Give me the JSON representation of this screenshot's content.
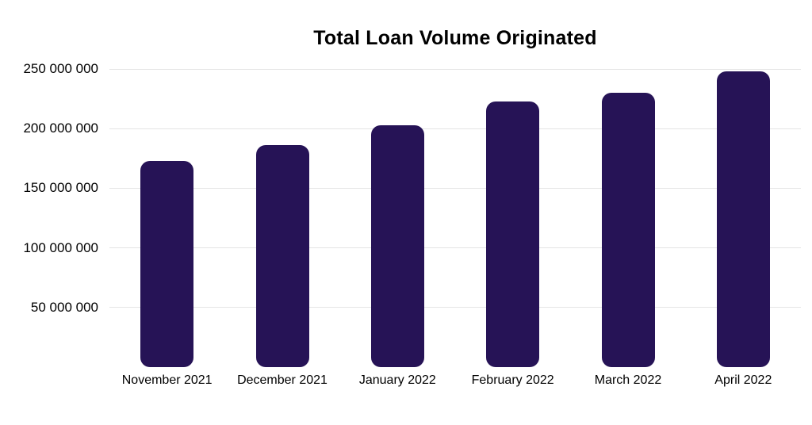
{
  "chart_data": {
    "type": "bar",
    "title": "Total Loan Volume Originated",
    "categories": [
      "November 2021",
      "December 2021",
      "January 2022",
      "February 2022",
      "March 2022",
      "April 2022"
    ],
    "values": [
      173000000,
      186000000,
      203000000,
      223000000,
      230000000,
      248000000
    ],
    "xlabel": "",
    "ylabel": "",
    "ylim": [
      0,
      250000000
    ],
    "yticks": [
      {
        "value": 50000000,
        "label": "50 000 000"
      },
      {
        "value": 100000000,
        "label": "100 000 000"
      },
      {
        "value": 150000000,
        "label": "150 000 000"
      },
      {
        "value": 200000000,
        "label": "200 000 000"
      },
      {
        "value": 250000000,
        "label": "250 000 000"
      }
    ],
    "grid": true,
    "legend": false,
    "colors": {
      "bar": "#261356",
      "gridline": "#e5e5e5",
      "text": "#000000",
      "background": "#ffffff"
    }
  }
}
